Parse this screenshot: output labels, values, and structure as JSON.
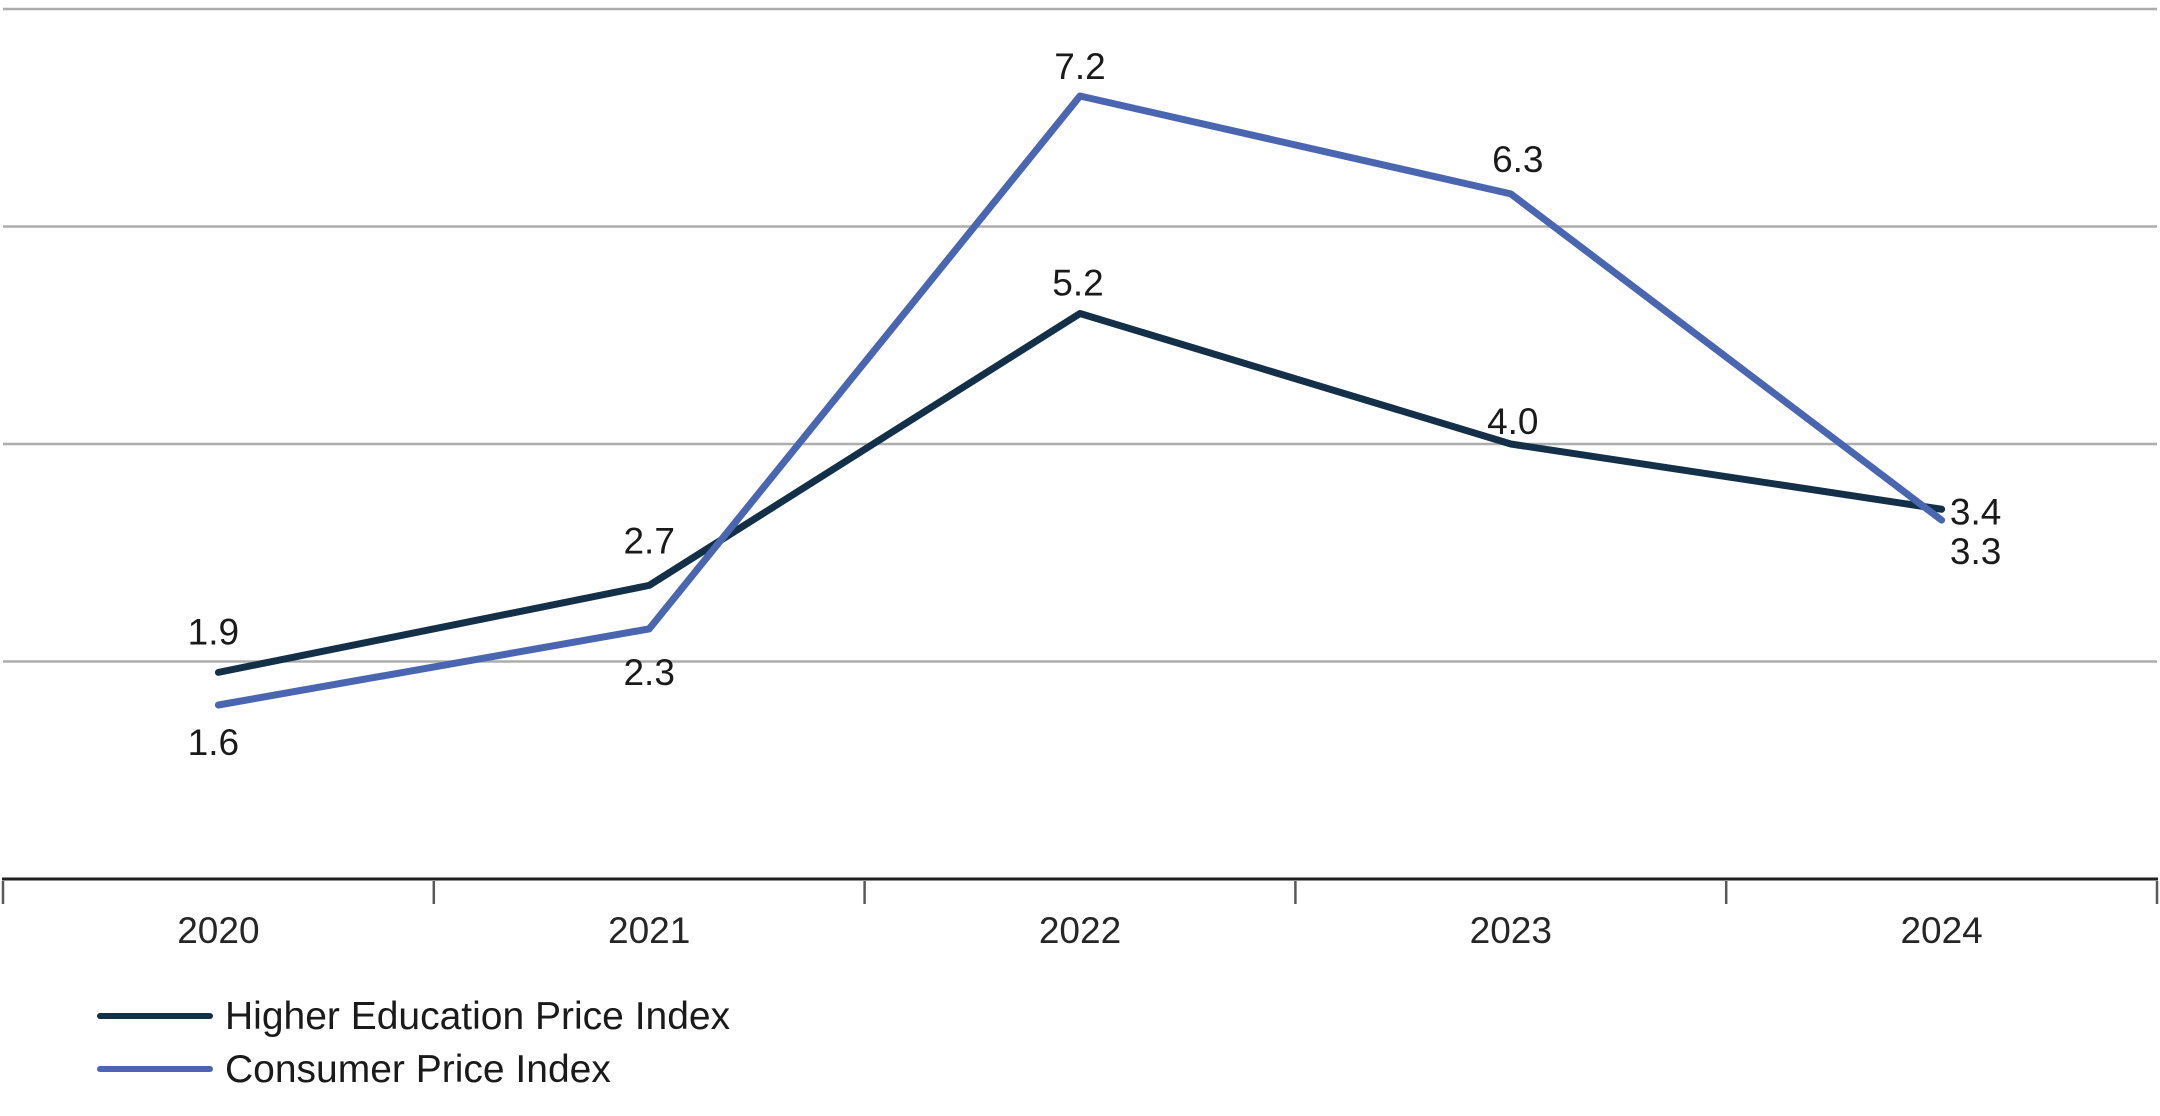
{
  "chart_data": {
    "type": "line",
    "title": "",
    "xlabel": "",
    "ylabel": "",
    "categories": [
      "2020",
      "2021",
      "2022",
      "2023",
      "2024"
    ],
    "series": [
      {
        "name": "Higher Education Price Index",
        "color": "#143049",
        "values": [
          1.9,
          2.7,
          5.2,
          4.0,
          3.4
        ],
        "value_labels": [
          "1.9",
          "2.7",
          "5.2",
          "4.0",
          "3.4"
        ],
        "label_offsets": [
          [
            -5,
            -41
          ],
          [
            0,
            -45
          ],
          [
            -2,
            -31
          ],
          [
            2,
            -23
          ],
          [
            34,
            2
          ]
        ]
      },
      {
        "name": "Consumer Price Index",
        "color": "#4A66B0",
        "values": [
          1.6,
          2.3,
          7.2,
          6.3,
          3.3
        ],
        "value_labels": [
          "1.6",
          "2.3",
          "7.2",
          "6.3",
          "3.3"
        ],
        "label_offsets": [
          [
            -5,
            37
          ],
          [
            0,
            43
          ],
          [
            0,
            -30
          ],
          [
            7,
            -35
          ],
          [
            34,
            31
          ]
        ]
      }
    ],
    "ylim": [
      0,
      8
    ],
    "gridline_values": [
      2,
      4,
      6,
      8
    ],
    "grid": true,
    "legend_position": "bottom-left",
    "colors": {
      "gridline": "#ADADAD",
      "axis_line": "#1F1F1F",
      "tick_mark": "#595959",
      "data_label_text": "#1A1A1A",
      "axis_label_text": "#262626",
      "background": "#FFFFFF"
    }
  }
}
